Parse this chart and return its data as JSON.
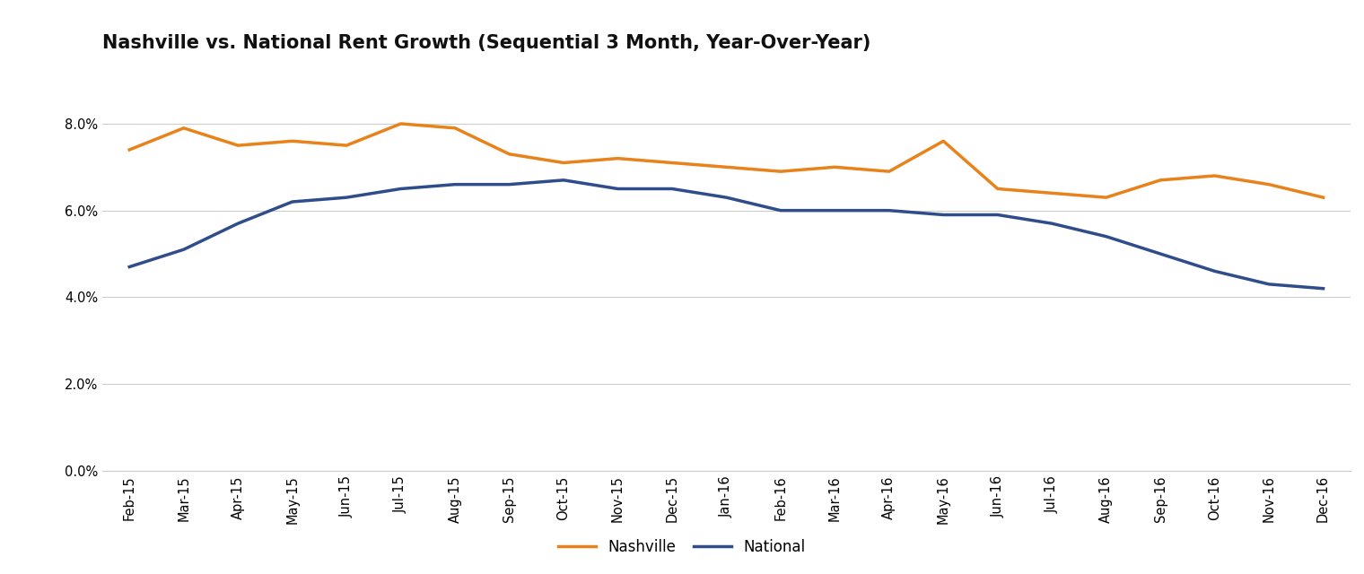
{
  "title": "Nashville vs. National Rent Growth (Sequential 3 Month, Year-Over-Year)",
  "categories": [
    "Feb-15",
    "Mar-15",
    "Apr-15",
    "May-15",
    "Jun-15",
    "Jul-15",
    "Aug-15",
    "Sep-15",
    "Oct-15",
    "Nov-15",
    "Dec-15",
    "Jan-16",
    "Feb-16",
    "Mar-16",
    "Apr-16",
    "May-16",
    "Jun-16",
    "Jul-16",
    "Aug-16",
    "Sep-16",
    "Oct-16",
    "Nov-16",
    "Dec-16"
  ],
  "nashville": [
    0.074,
    0.079,
    0.075,
    0.076,
    0.075,
    0.08,
    0.079,
    0.073,
    0.071,
    0.072,
    0.071,
    0.07,
    0.069,
    0.07,
    0.069,
    0.076,
    0.065,
    0.064,
    0.063,
    0.067,
    0.068,
    0.066,
    0.063
  ],
  "national": [
    0.047,
    0.051,
    0.057,
    0.062,
    0.063,
    0.065,
    0.066,
    0.066,
    0.067,
    0.065,
    0.065,
    0.063,
    0.06,
    0.06,
    0.06,
    0.059,
    0.059,
    0.057,
    0.054,
    0.05,
    0.046,
    0.043,
    0.042
  ],
  "nashville_color": "#E8821A",
  "national_color": "#2E4D8A",
  "line_width": 2.5,
  "background_color": "#FFFFFF",
  "grid_color": "#CCCCCC",
  "title_fontsize": 15,
  "tick_fontsize": 10.5,
  "legend_fontsize": 12,
  "ylim": [
    0.0,
    0.09
  ],
  "yticks": [
    0.0,
    0.02,
    0.04,
    0.06,
    0.08
  ]
}
